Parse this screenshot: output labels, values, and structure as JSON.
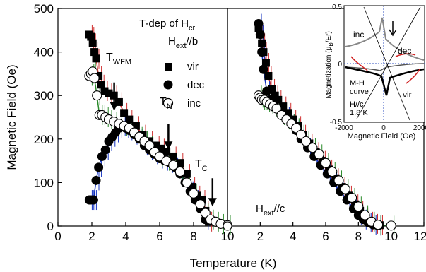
{
  "chart_data": [
    {
      "type": "scatter",
      "panel": "left",
      "ylabel": "Magnetic Field (Oe)",
      "xlim": [
        0,
        12
      ],
      "ylim": [
        0,
        500
      ],
      "xticks": [
        "0",
        "2",
        "4",
        "6",
        "8",
        "10",
        "12"
      ],
      "yticks": [
        "0",
        "100",
        "200",
        "300",
        "400",
        "500"
      ],
      "title_line1": "T-dep of H",
      "title_line1_sub": "cr",
      "title_line2": "H",
      "title_line2_sub": "ext",
      "title_line2_rest": "//b",
      "legend": [
        "vir",
        "dec",
        "inc"
      ],
      "annotations": [
        {
          "base": "T",
          "sub": "WFM",
          "x": 2.9,
          "y": 350,
          "arrow_from": 330,
          "arrow_to": 265
        },
        {
          "base": "T",
          "sub": "N",
          "x": 6.1,
          "y": 255,
          "arrow_from": 235,
          "arrow_to": 175
        },
        {
          "base": "T",
          "sub": "C",
          "x": 8.7,
          "y": 130,
          "arrow_from": 110,
          "arrow_to": 45
        }
      ],
      "series": [
        {
          "name": "vir",
          "marker": "square",
          "line": "#d03030",
          "x": [
            1.85,
            1.95,
            2.05,
            2.15,
            2.25,
            2.4,
            2.55,
            2.75,
            3.0,
            3.3,
            3.6,
            3.9,
            4.2,
            4.6,
            5.0,
            5.4,
            5.8,
            6.1,
            6.4,
            6.8,
            7.2,
            7.6,
            7.9,
            8.2,
            8.5,
            8.7,
            8.9
          ],
          "y": [
            440,
            435,
            420,
            400,
            385,
            345,
            325,
            310,
            305,
            300,
            285,
            260,
            245,
            230,
            210,
            195,
            185,
            178,
            170,
            160,
            145,
            120,
            90,
            70,
            60,
            35,
            10
          ]
        },
        {
          "name": "dec",
          "marker": "circle-filled",
          "line": "#1030c0",
          "x": [
            1.85,
            1.95,
            2.1,
            2.25,
            2.4,
            2.6,
            2.8,
            3.0,
            3.2,
            3.4,
            3.6,
            3.8,
            4.0,
            4.2,
            4.5,
            4.8,
            5.1,
            5.4,
            5.7,
            6.0,
            6.3,
            6.6,
            6.9,
            7.2,
            7.5,
            7.8,
            8.1,
            8.4,
            8.7
          ],
          "y": [
            60,
            60,
            60,
            105,
            135,
            160,
            175,
            195,
            205,
            215,
            225,
            230,
            225,
            220,
            210,
            200,
            185,
            175,
            165,
            155,
            150,
            145,
            135,
            120,
            100,
            80,
            60,
            40,
            15
          ]
        },
        {
          "name": "inc",
          "marker": "circle-open",
          "line": "#2a8a2a",
          "x": [
            1.85,
            1.95,
            2.05,
            2.15,
            2.3,
            2.45,
            2.6,
            2.8,
            3.0,
            3.3,
            3.6,
            3.9,
            4.2,
            4.5,
            4.8,
            5.1,
            5.4,
            5.7,
            6.0,
            6.4,
            6.8,
            7.2,
            7.6,
            8.0,
            8.4,
            8.7,
            9.0,
            9.3,
            9.6,
            10.0
          ],
          "y": [
            345,
            350,
            355,
            340,
            300,
            255,
            255,
            250,
            245,
            240,
            235,
            230,
            225,
            215,
            205,
            195,
            185,
            170,
            160,
            150,
            140,
            125,
            100,
            75,
            50,
            30,
            15,
            10,
            5,
            2
          ]
        }
      ]
    },
    {
      "type": "scatter",
      "panel": "middle",
      "xlim": [
        0,
        12
      ],
      "ylim": [
        0,
        500
      ],
      "xticks": [
        "0",
        "2",
        "4",
        "6",
        "8",
        "10",
        "12"
      ],
      "label": "H",
      "label_sub": "ext",
      "label_rest": "//c",
      "series": [
        {
          "name": "vir",
          "marker": "square",
          "line": "#d03030",
          "x": [
            1.9,
            2.0,
            2.1,
            2.2,
            2.35,
            2.5,
            2.7,
            2.9,
            3.1,
            3.4,
            3.7,
            4.0,
            4.3,
            4.6,
            5.0,
            5.4,
            5.8,
            6.2,
            6.6,
            7.0,
            7.4,
            7.8,
            8.1,
            8.4,
            8.7,
            9.0,
            9.3
          ],
          "y": [
            455,
            440,
            420,
            400,
            375,
            345,
            315,
            300,
            290,
            275,
            260,
            245,
            230,
            210,
            190,
            170,
            150,
            130,
            110,
            90,
            70,
            50,
            35,
            20,
            10,
            5,
            2
          ]
        },
        {
          "name": "dec",
          "marker": "circle-filled",
          "line": "#1030c0",
          "x": [
            1.9,
            2.0,
            2.1,
            2.2,
            2.4,
            2.6,
            2.8,
            3.0,
            3.3,
            3.6,
            3.9,
            4.2,
            4.5,
            4.9,
            5.3,
            5.7,
            6.1,
            6.5,
            6.9,
            7.3,
            7.7,
            8.0,
            8.3,
            8.6,
            8.9,
            9.2
          ],
          "y": [
            465,
            440,
            400,
            360,
            310,
            290,
            280,
            270,
            260,
            250,
            235,
            220,
            200,
            180,
            160,
            140,
            120,
            100,
            80,
            60,
            40,
            25,
            15,
            8,
            3,
            1
          ]
        },
        {
          "name": "inc",
          "marker": "circle-open",
          "line": "#2a8a2a",
          "x": [
            1.9,
            2.0,
            2.1,
            2.25,
            2.4,
            2.6,
            2.8,
            3.0,
            3.3,
            3.6,
            3.9,
            4.2,
            4.5,
            4.8,
            5.2,
            5.6,
            6.0,
            6.4,
            6.8,
            7.2,
            7.6,
            8.0,
            8.4,
            8.8,
            9.2,
            10.0
          ],
          "y": [
            300,
            295,
            290,
            290,
            285,
            280,
            275,
            270,
            255,
            245,
            235,
            225,
            210,
            195,
            180,
            165,
            145,
            125,
            105,
            85,
            65,
            45,
            25,
            10,
            3,
            1
          ]
        }
      ]
    },
    {
      "type": "line",
      "panel": "inset",
      "xlabel": "Magnetic Field (Oe)",
      "ylabel": "Magnetization (μ",
      "ylabel_sub": "B",
      "ylabel_rest": "/Er)",
      "xlim": [
        -2000,
        2000
      ],
      "ylim": [
        -0.5,
        0.5
      ],
      "xticks": [
        "-2000",
        "0",
        "2000"
      ],
      "yticks": [
        "-0.5",
        "0",
        "0.5"
      ],
      "labels": [
        "inc",
        "dec",
        "vir"
      ],
      "note_lines": [
        "M-H",
        "curve",
        "H//c",
        "1.8 K"
      ]
    }
  ],
  "axis_labels": {
    "x": "Temperature (K)",
    "y": "Magnetic Field (Oe)"
  }
}
